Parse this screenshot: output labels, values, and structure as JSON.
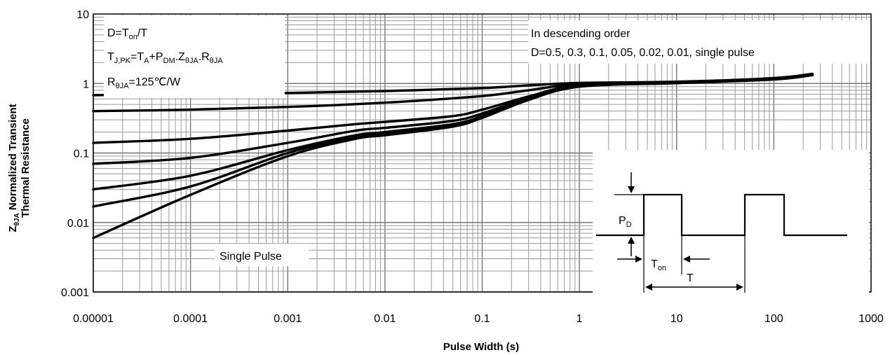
{
  "chart_data": {
    "type": "line",
    "xscale": "log",
    "yscale": "log",
    "xlim": [
      1e-05,
      1000
    ],
    "ylim": [
      0.001,
      10
    ],
    "grid": true,
    "xlabel": "Pulse Width (s)",
    "ylabel": {
      "line1_main": "Z",
      "line1_sub": "θJA",
      "line1_rest": " Normalized Transient",
      "line2": "Thermal Resistance"
    },
    "x_ticks": [
      "0.00001",
      "0.0001",
      "0.001",
      "0.01",
      "0.1",
      "1",
      "10",
      "100",
      "1000"
    ],
    "y_ticks": [
      "0.001",
      "0.01",
      "0.1",
      "1",
      "10"
    ],
    "formula_box": {
      "line1": [
        {
          "t": "D=T"
        },
        {
          "t": "on",
          "sub": true
        },
        {
          "t": "/T"
        }
      ],
      "line2": [
        {
          "t": "T"
        },
        {
          "t": "J,PK",
          "sub": true
        },
        {
          "t": "=T"
        },
        {
          "t": "A",
          "sub": true
        },
        {
          "t": "+P"
        },
        {
          "t": "DM",
          "sub": true
        },
        {
          "t": ".Z"
        },
        {
          "t": "θJA",
          "sub": true
        },
        {
          "t": ".R"
        },
        {
          "t": "θJA",
          "sub": true
        }
      ],
      "line3": [
        {
          "t": "R"
        },
        {
          "t": "θJA",
          "sub": true
        },
        {
          "t": "=125℃/W"
        }
      ]
    },
    "legend_box": {
      "line1": "In descending order",
      "line2": "D=0.5, 0.3, 0.1, 0.05, 0.02, 0.01, single pulse"
    },
    "annotation": "Single Pulse",
    "pulse_diagram": {
      "pd_main": "P",
      "pd_sub": "D",
      "ton_main": "T",
      "ton_sub": "on",
      "t_label": "T"
    },
    "series": [
      {
        "label_D": "0.5",
        "points": [
          [
            1e-05,
            0.68
          ],
          [
            0.0001,
            0.7
          ],
          [
            0.001,
            0.73
          ],
          [
            0.01,
            0.78
          ],
          [
            0.1,
            0.86
          ],
          [
            0.3,
            0.94
          ],
          [
            1,
            1.02
          ],
          [
            10,
            1.06
          ],
          [
            100,
            1.2
          ],
          [
            250,
            1.38
          ]
        ]
      },
      {
        "label_D": "0.3",
        "points": [
          [
            1e-05,
            0.4
          ],
          [
            0.0001,
            0.42
          ],
          [
            0.001,
            0.46
          ],
          [
            0.01,
            0.53
          ],
          [
            0.1,
            0.66
          ],
          [
            0.3,
            0.8
          ],
          [
            1,
            0.98
          ],
          [
            10,
            1.05
          ],
          [
            100,
            1.18
          ],
          [
            250,
            1.36
          ]
        ]
      },
      {
        "label_D": "0.1",
        "points": [
          [
            1e-05,
            0.14
          ],
          [
            0.0001,
            0.16
          ],
          [
            0.001,
            0.21
          ],
          [
            0.005,
            0.26
          ],
          [
            0.01,
            0.28
          ],
          [
            0.05,
            0.34
          ],
          [
            0.1,
            0.42
          ],
          [
            0.3,
            0.65
          ],
          [
            1,
            0.95
          ],
          [
            10,
            1.04
          ],
          [
            100,
            1.17
          ],
          [
            250,
            1.35
          ]
        ]
      },
      {
        "label_D": "0.05",
        "points": [
          [
            1e-05,
            0.07
          ],
          [
            0.0001,
            0.085
          ],
          [
            0.001,
            0.14
          ],
          [
            0.005,
            0.21
          ],
          [
            0.01,
            0.23
          ],
          [
            0.05,
            0.29
          ],
          [
            0.1,
            0.37
          ],
          [
            0.3,
            0.62
          ],
          [
            1,
            0.93
          ],
          [
            10,
            1.03
          ],
          [
            100,
            1.16
          ],
          [
            250,
            1.34
          ]
        ]
      },
      {
        "label_D": "0.02",
        "points": [
          [
            1e-05,
            0.03
          ],
          [
            0.0001,
            0.047
          ],
          [
            0.001,
            0.11
          ],
          [
            0.005,
            0.18
          ],
          [
            0.01,
            0.2
          ],
          [
            0.05,
            0.26
          ],
          [
            0.1,
            0.34
          ],
          [
            0.3,
            0.6
          ],
          [
            1,
            0.92
          ],
          [
            10,
            1.02
          ],
          [
            100,
            1.15
          ],
          [
            250,
            1.33
          ]
        ]
      },
      {
        "label_D": "0.01",
        "points": [
          [
            1e-05,
            0.017
          ],
          [
            0.0001,
            0.033
          ],
          [
            0.001,
            0.1
          ],
          [
            0.005,
            0.17
          ],
          [
            0.01,
            0.19
          ],
          [
            0.05,
            0.25
          ],
          [
            0.1,
            0.33
          ],
          [
            0.3,
            0.59
          ],
          [
            1,
            0.91
          ],
          [
            10,
            1.02
          ],
          [
            100,
            1.15
          ],
          [
            250,
            1.33
          ]
        ]
      },
      {
        "label_D": "single pulse",
        "points": [
          [
            1e-05,
            0.006
          ],
          [
            0.0001,
            0.025
          ],
          [
            0.001,
            0.09
          ],
          [
            0.005,
            0.16
          ],
          [
            0.01,
            0.18
          ],
          [
            0.05,
            0.24
          ],
          [
            0.1,
            0.32
          ],
          [
            0.3,
            0.58
          ],
          [
            1,
            0.9
          ],
          [
            10,
            1.01
          ],
          [
            100,
            1.14
          ],
          [
            250,
            1.32
          ]
        ]
      }
    ]
  }
}
